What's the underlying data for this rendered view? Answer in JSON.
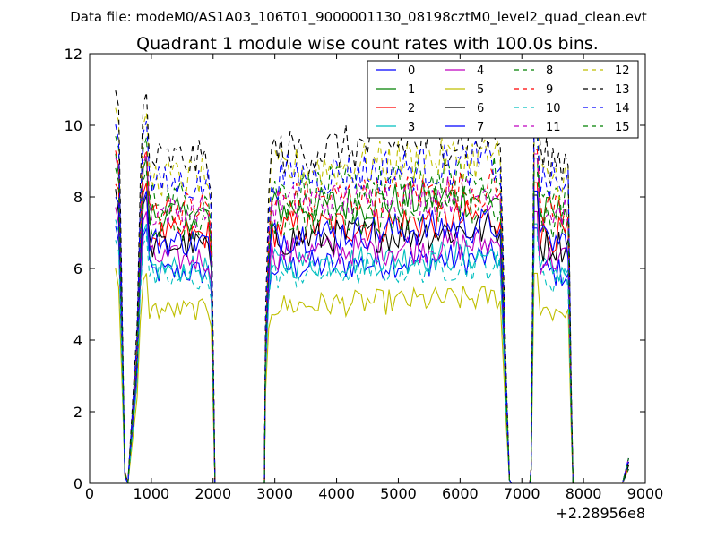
{
  "chart_data": {
    "type": "line",
    "supertitle": "Data file: modeM0/AS1A03_106T01_9000001130_08198cztM0_level2_quad_clean.evt",
    "title": "Quadrant 1 module wise count rates with 100.0s bins.",
    "xlabel": "",
    "ylabel": "",
    "x_offset_label": "+2.28956e8",
    "xlim": [
      0,
      9000
    ],
    "ylim": [
      0,
      12
    ],
    "x_ticks": [
      0,
      1000,
      2000,
      3000,
      4000,
      5000,
      6000,
      7000,
      8000,
      9000
    ],
    "y_ticks": [
      0,
      2,
      4,
      6,
      8,
      10,
      12
    ],
    "grid": false,
    "legend_position": "top-right",
    "segments": [
      {
        "start": 420,
        "end": 2030
      },
      {
        "start": 2030,
        "end": 2830,
        "zero": true
      },
      {
        "start": 2830,
        "end": 6830
      },
      {
        "start": 6830,
        "end": 7130,
        "zero": true
      },
      {
        "start": 7130,
        "end": 7830
      },
      {
        "start": 7830,
        "end": 8630,
        "zero": true
      }
    ],
    "series": [
      {
        "name": "0",
        "color": "#0000ff",
        "dash": "solid",
        "level": 6.2
      },
      {
        "name": "1",
        "color": "#008000",
        "dash": "solid",
        "level": 7.9
      },
      {
        "name": "2",
        "color": "#ff0000",
        "dash": "solid",
        "level": 7.3
      },
      {
        "name": "3",
        "color": "#00bfbf",
        "dash": "solid",
        "level": 6.3
      },
      {
        "name": "4",
        "color": "#bf00bf",
        "dash": "solid",
        "level": 6.6
      },
      {
        "name": "5",
        "color": "#bfbf00",
        "dash": "solid",
        "level": 5.1
      },
      {
        "name": "6",
        "color": "#000000",
        "dash": "solid",
        "level": 7.0
      },
      {
        "name": "7",
        "color": "#0000ff",
        "dash": "solid",
        "level": 7.1
      },
      {
        "name": "8",
        "color": "#008000",
        "dash": "dashed",
        "level": 8.4
      },
      {
        "name": "9",
        "color": "#ff0000",
        "dash": "dashed",
        "level": 8.1
      },
      {
        "name": "10",
        "color": "#00bfbf",
        "dash": "dashed",
        "level": 6.0
      },
      {
        "name": "11",
        "color": "#bf00bf",
        "dash": "dashed",
        "level": 8.0
      },
      {
        "name": "12",
        "color": "#bfbf00",
        "dash": "dashed",
        "level": 9.0
      },
      {
        "name": "13",
        "color": "#000000",
        "dash": "dashed",
        "level": 9.5
      },
      {
        "name": "14",
        "color": "#0000ff",
        "dash": "dashed",
        "level": 8.8
      },
      {
        "name": "15",
        "color": "#008000",
        "dash": "dashed",
        "level": 7.6
      }
    ]
  }
}
